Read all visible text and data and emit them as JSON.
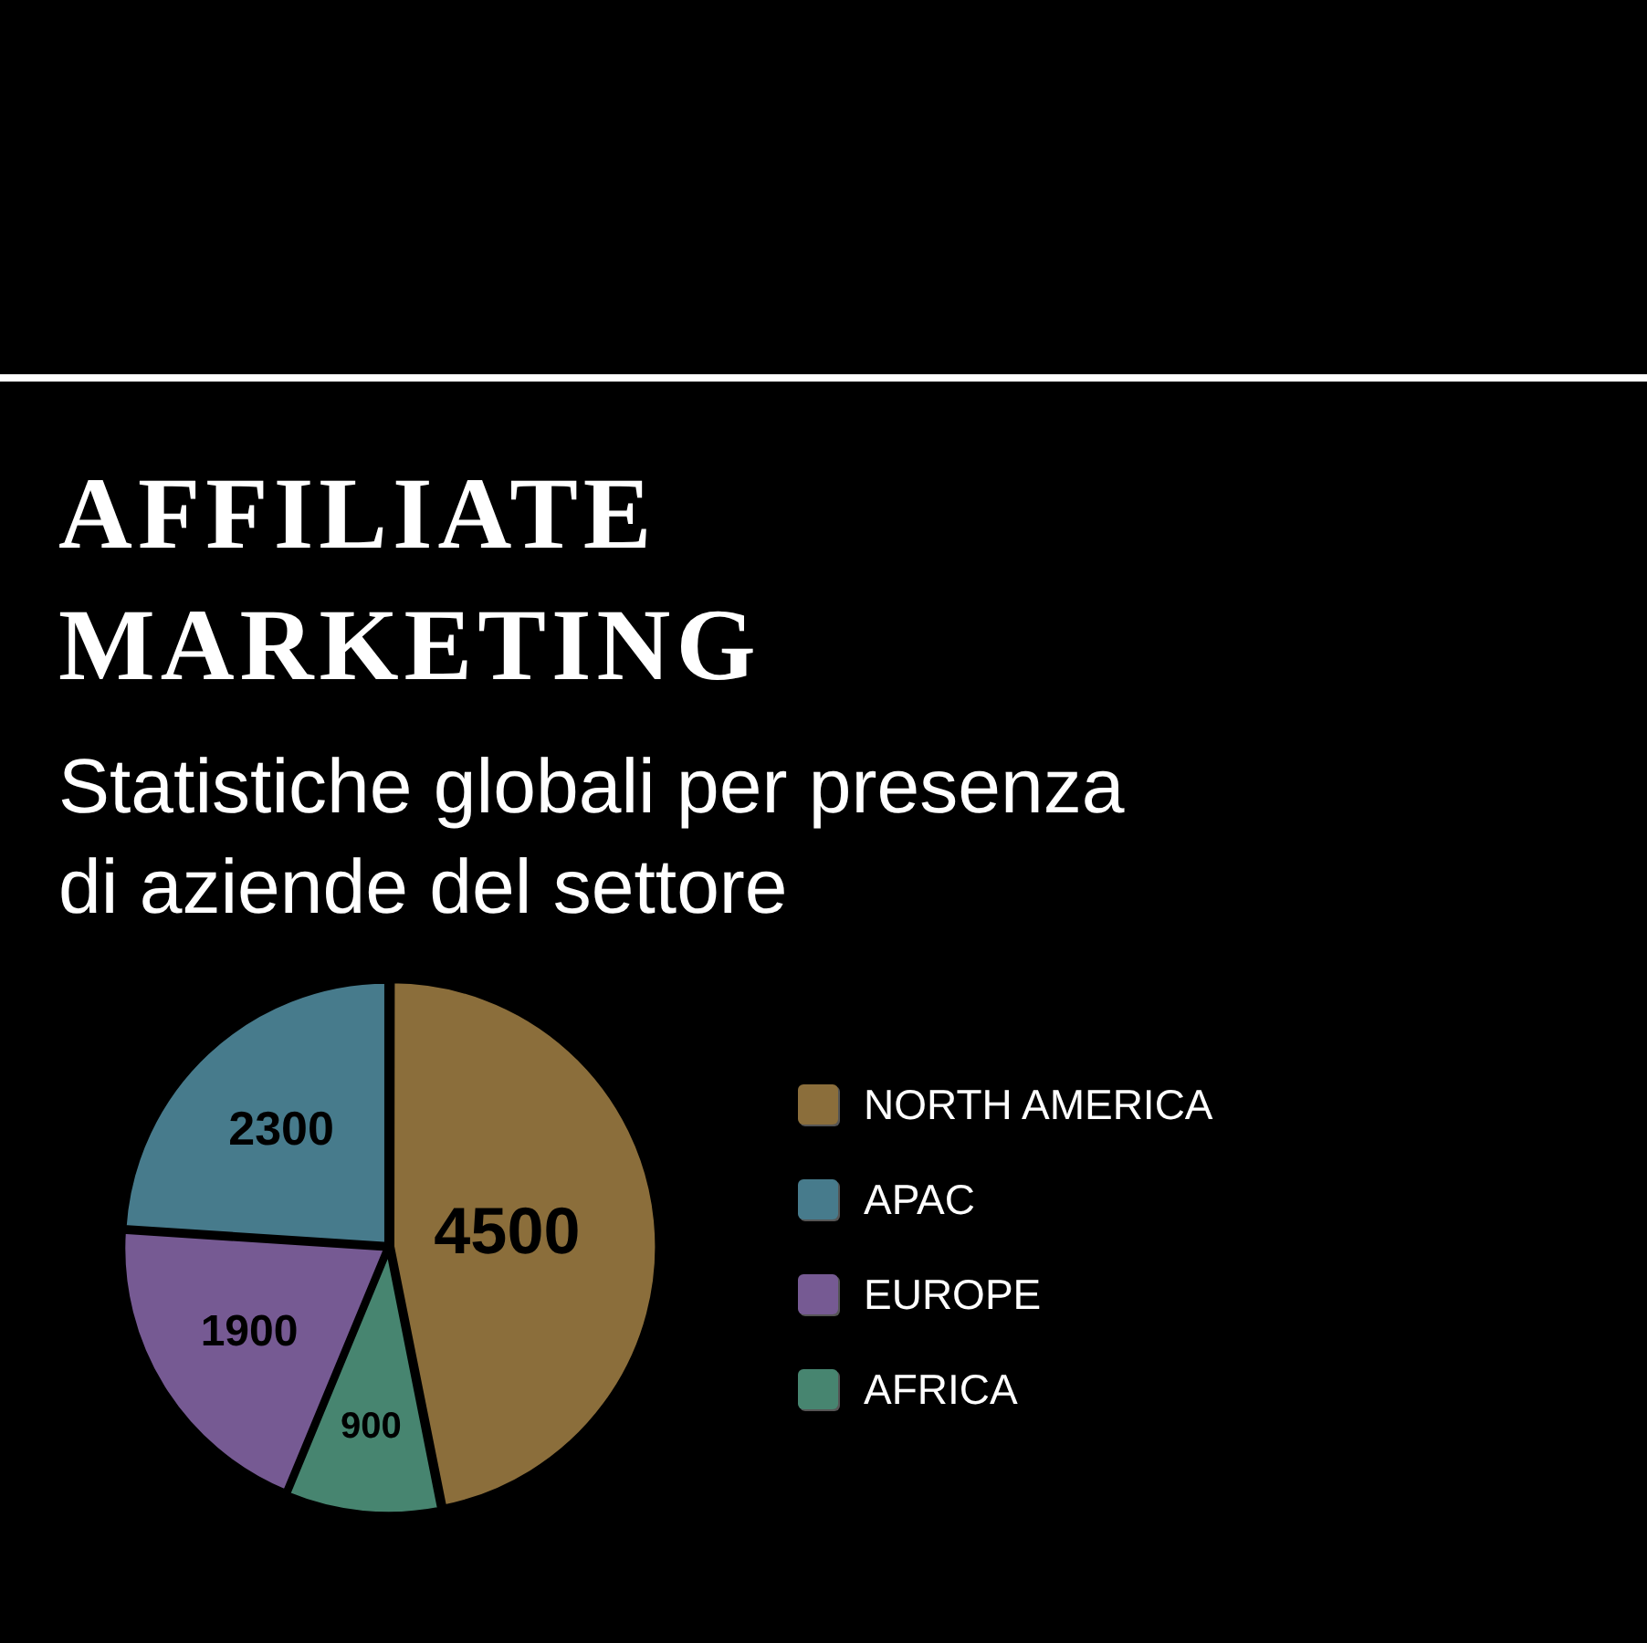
{
  "chart_data": {
    "type": "pie",
    "title": "AFFILIATE MARKETING",
    "subtitle": "Statistiche globali per presenza di aziende del settore",
    "categories": [
      "NORTH AMERICA",
      "APAC",
      "EUROPE",
      "AFRICA"
    ],
    "values": [
      4500,
      2300,
      1900,
      900
    ],
    "colors": [
      "#8b6e3b",
      "#477b8c",
      "#765a93",
      "#478570"
    ],
    "data_labels": true,
    "legend": "right"
  }
}
